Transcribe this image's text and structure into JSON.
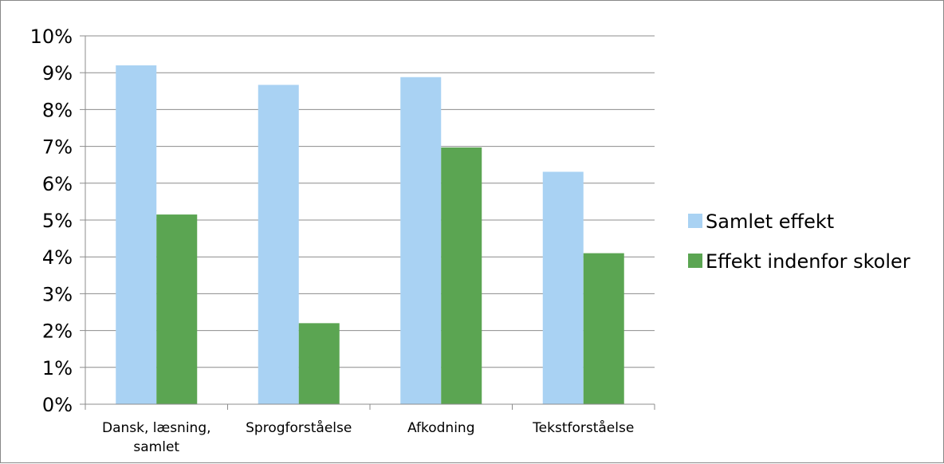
{
  "chart_data": {
    "type": "bar",
    "title": "",
    "xlabel": "",
    "ylabel": "",
    "categories": [
      [
        "Dansk, læsning,",
        "samlet"
      ],
      [
        "Sprogforståelse"
      ],
      [
        "Afkodning"
      ],
      [
        "Tekstforståelse"
      ]
    ],
    "series": [
      {
        "name": "Samlet effekt",
        "color": "#a9d2f3",
        "values": [
          0.092,
          0.0867,
          0.0888,
          0.0631
        ]
      },
      {
        "name": "Effekt indenfor skoler",
        "color": "#5ba552",
        "values": [
          0.0515,
          0.022,
          0.0697,
          0.041
        ]
      }
    ],
    "ylim": [
      0,
      0.1
    ],
    "yticks": [
      {
        "value": 0.0,
        "label": "0%"
      },
      {
        "value": 0.01,
        "label": "1%"
      },
      {
        "value": 0.02,
        "label": "2%"
      },
      {
        "value": 0.03,
        "label": "3%"
      },
      {
        "value": 0.04,
        "label": "4%"
      },
      {
        "value": 0.05,
        "label": "5%"
      },
      {
        "value": 0.06,
        "label": "6%"
      },
      {
        "value": 0.07,
        "label": "7%"
      },
      {
        "value": 0.08,
        "label": "8%"
      },
      {
        "value": 0.09,
        "label": "9%"
      },
      {
        "value": 0.1,
        "label": "10%"
      }
    ],
    "grid": true,
    "legend_position": "right",
    "gridline_color": "#8c8c8c",
    "axis_color": "#8c8c8c"
  }
}
